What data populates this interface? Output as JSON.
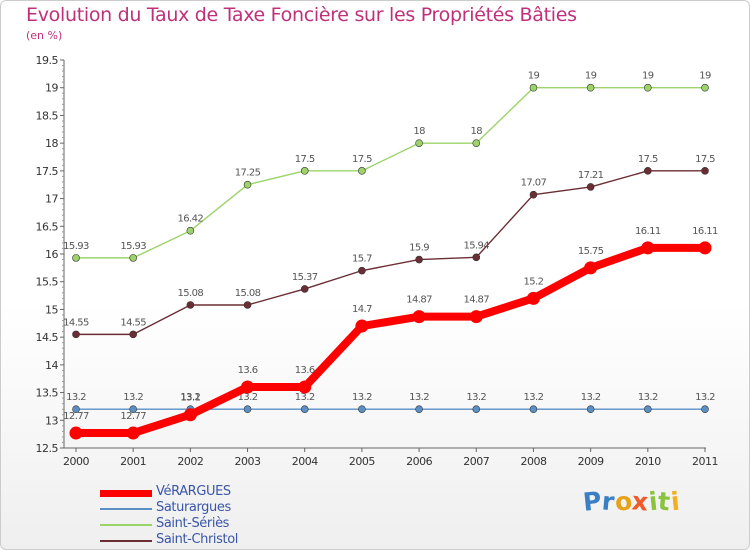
{
  "title": "Evolution du Taux de Taxe Foncière sur les Propriétés Bâties",
  "unit_label": "(en %)",
  "logo": {
    "letters": [
      "P",
      "r",
      "o",
      "x",
      "i",
      "t",
      "i"
    ],
    "colors": [
      "#3a7fc4",
      "#3a7fc4",
      "#e8a21a",
      "#f05a28",
      "#8ac43f",
      "#8ac43f",
      "#f2b01e"
    ]
  },
  "chart_data": {
    "type": "line",
    "title": "Evolution du Taux de Taxe Foncière sur les Propriétés Bâties",
    "ylabel": "(en %)",
    "xlabel": "",
    "x": [
      "2000",
      "2001",
      "2002",
      "2003",
      "2004",
      "2005",
      "2006",
      "2007",
      "2008",
      "2009",
      "2010",
      "2011"
    ],
    "ylim": [
      12.5,
      19.5
    ],
    "yticks": [
      "12.5",
      "13",
      "13.5",
      "14",
      "14.5",
      "15",
      "15.5",
      "16",
      "16.5",
      "17",
      "17.5",
      "18",
      "18.5",
      "19",
      "19.5"
    ],
    "grid": false,
    "series": [
      {
        "name": "VéRARGUES",
        "color": "#ff0000",
        "values": [
          12.77,
          12.77,
          13.1,
          13.6,
          13.6,
          14.7,
          14.87,
          14.87,
          15.2,
          15.75,
          16.11,
          16.11
        ],
        "labels": [
          "12.77",
          "12.77",
          "13.1",
          "13.6",
          "13.6",
          "14.7",
          "14.87",
          "14.87",
          "15.2",
          "15.75",
          "16.11",
          "16.11"
        ]
      },
      {
        "name": "Saturargues",
        "color": "#5b8fc4",
        "values": [
          13.2,
          13.2,
          13.2,
          13.2,
          13.2,
          13.2,
          13.2,
          13.2,
          13.2,
          13.2,
          13.2,
          13.2
        ],
        "labels": [
          "13.2",
          "13.2",
          "13.2",
          "13.2",
          "13.2",
          "13.2",
          "13.2",
          "13.2",
          "13.2",
          "13.2",
          "13.2",
          "13.2"
        ]
      },
      {
        "name": "Saint-Sériès",
        "color": "#9cd46a",
        "values": [
          15.93,
          15.93,
          16.42,
          17.25,
          17.5,
          17.5,
          18,
          18,
          19,
          19,
          19,
          19
        ],
        "labels": [
          "15.93",
          "15.93",
          "16.42",
          "17.25",
          "17.5",
          "17.5",
          "18",
          "18",
          "19",
          "19",
          "19",
          "19"
        ]
      },
      {
        "name": "Saint-Christol",
        "color": "#6b2e34",
        "values": [
          14.55,
          14.55,
          15.08,
          15.08,
          15.37,
          15.7,
          15.9,
          15.94,
          17.07,
          17.21,
          17.5,
          17.5
        ],
        "labels": [
          "14.55",
          "14.55",
          "15.08",
          "15.08",
          "15.37",
          "15.7",
          "15.9",
          "15.94",
          "17.07",
          "17.21",
          "17.5",
          "17.5"
        ]
      }
    ]
  }
}
